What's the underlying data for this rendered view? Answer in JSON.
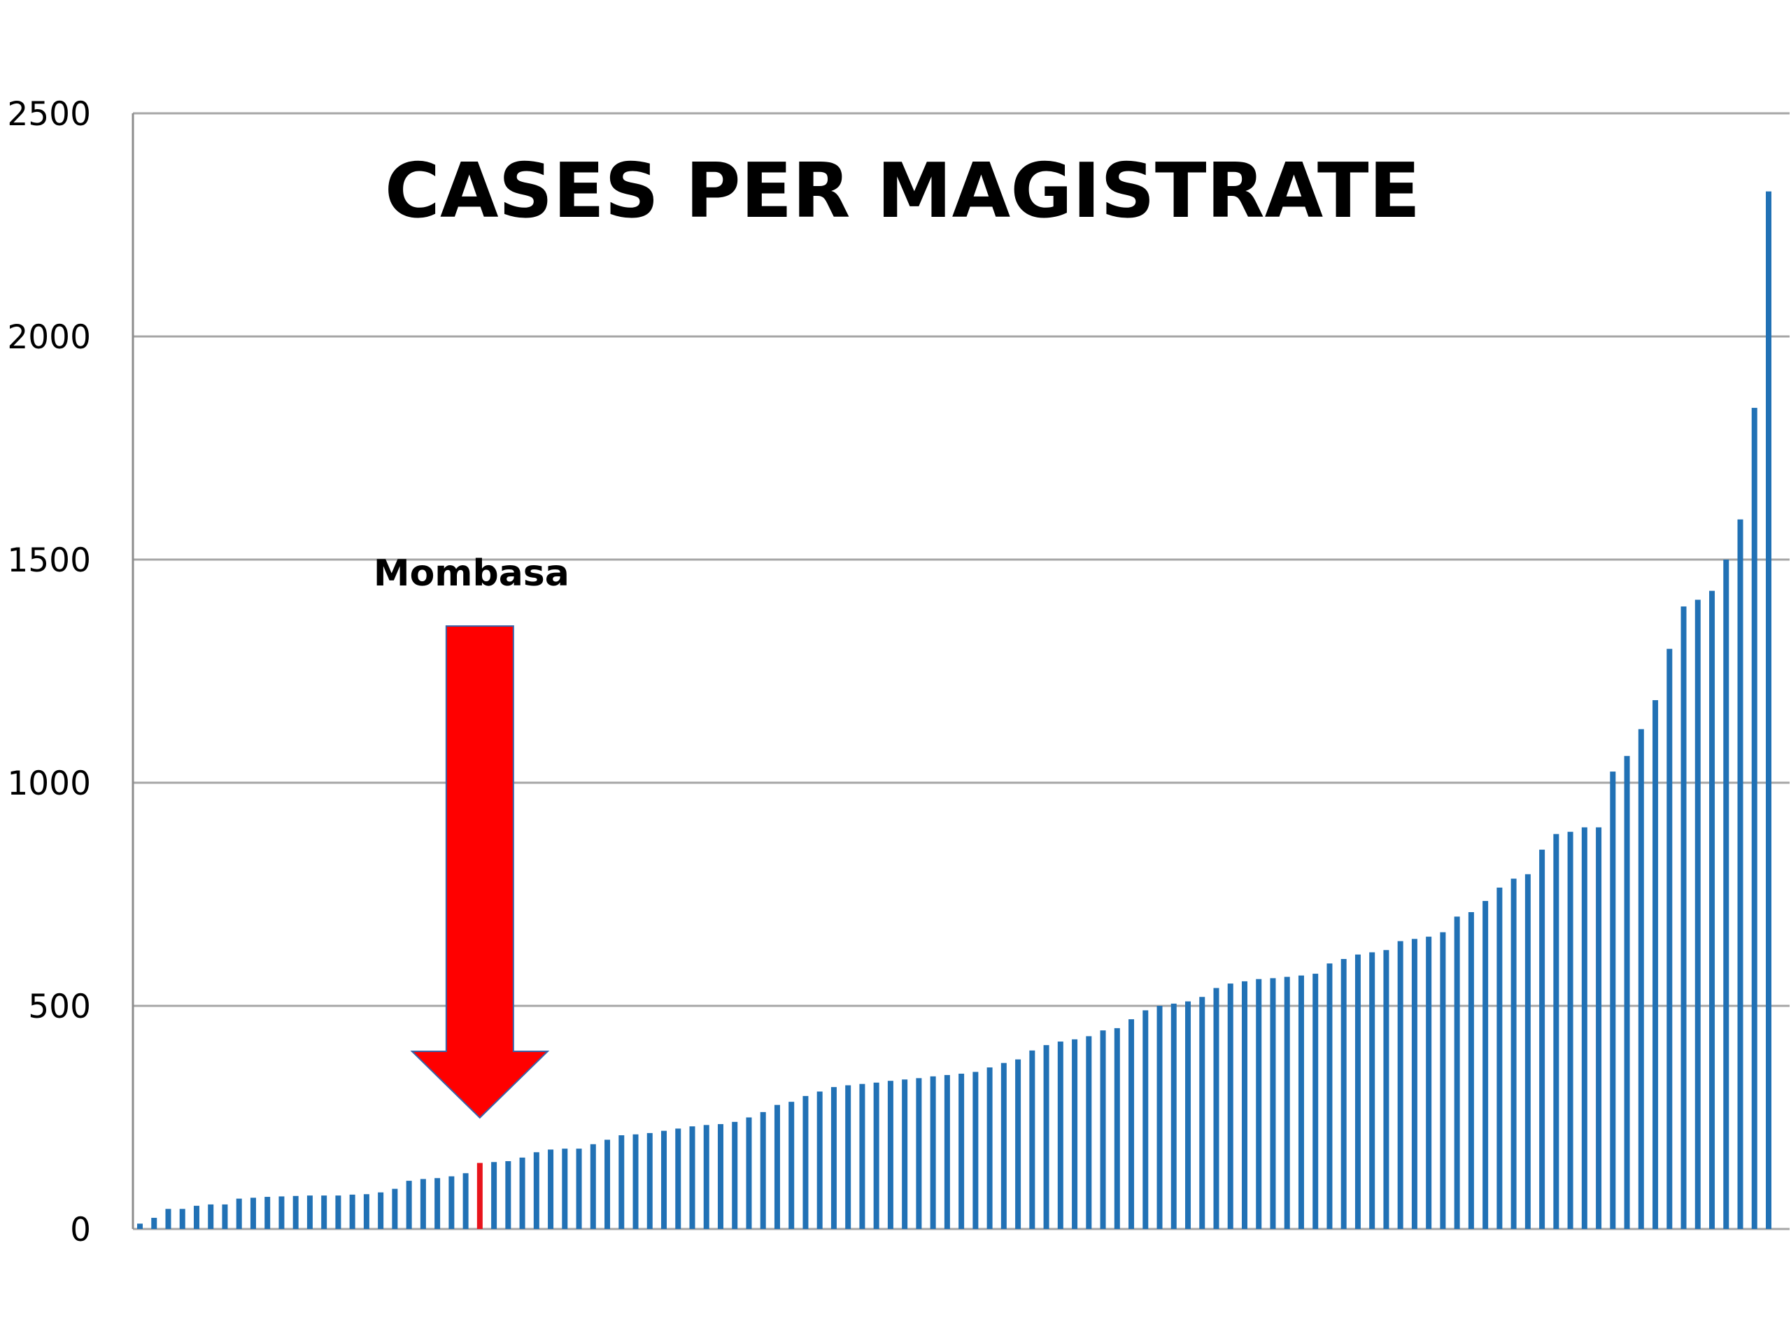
{
  "chart_data": {
    "type": "bar",
    "title": "CASES PER MAGISTRATE",
    "xlabel": "",
    "ylabel": "",
    "ylim": [
      0,
      2500
    ],
    "yticks": [
      0,
      500,
      1000,
      1500,
      2000,
      2500
    ],
    "grid": true,
    "highlight_index": 24,
    "colors": {
      "bar": "#2171b5",
      "highlight": "#e8141b",
      "arrow": "#ff0000",
      "grid": "#a6a6a6",
      "axis": "#8c8c8c"
    },
    "annotation": {
      "label": "Mombasa",
      "points_to_index": 24
    },
    "values": [
      12,
      25,
      45,
      45,
      52,
      55,
      55,
      68,
      70,
      72,
      73,
      74,
      75,
      75,
      75,
      77,
      78,
      82,
      90,
      108,
      112,
      114,
      118,
      125,
      148,
      150,
      152,
      160,
      172,
      178,
      180,
      180,
      190,
      200,
      210,
      212,
      215,
      220,
      225,
      230,
      233,
      235,
      240,
      250,
      262,
      278,
      285,
      298,
      308,
      318,
      322,
      325,
      328,
      332,
      335,
      338,
      342,
      345,
      348,
      352,
      362,
      372,
      380,
      400,
      412,
      420,
      425,
      432,
      445,
      450,
      470,
      490,
      500,
      505,
      510,
      520,
      540,
      550,
      555,
      560,
      562,
      565,
      568,
      572,
      595,
      605,
      615,
      620,
      625,
      645,
      650,
      655,
      665,
      700,
      710,
      735,
      765,
      785,
      795,
      850,
      885,
      890,
      900,
      900,
      1025,
      1060,
      1120,
      1185,
      1300,
      1395,
      1410,
      1430,
      1500,
      1590,
      1840,
      2325
    ]
  }
}
